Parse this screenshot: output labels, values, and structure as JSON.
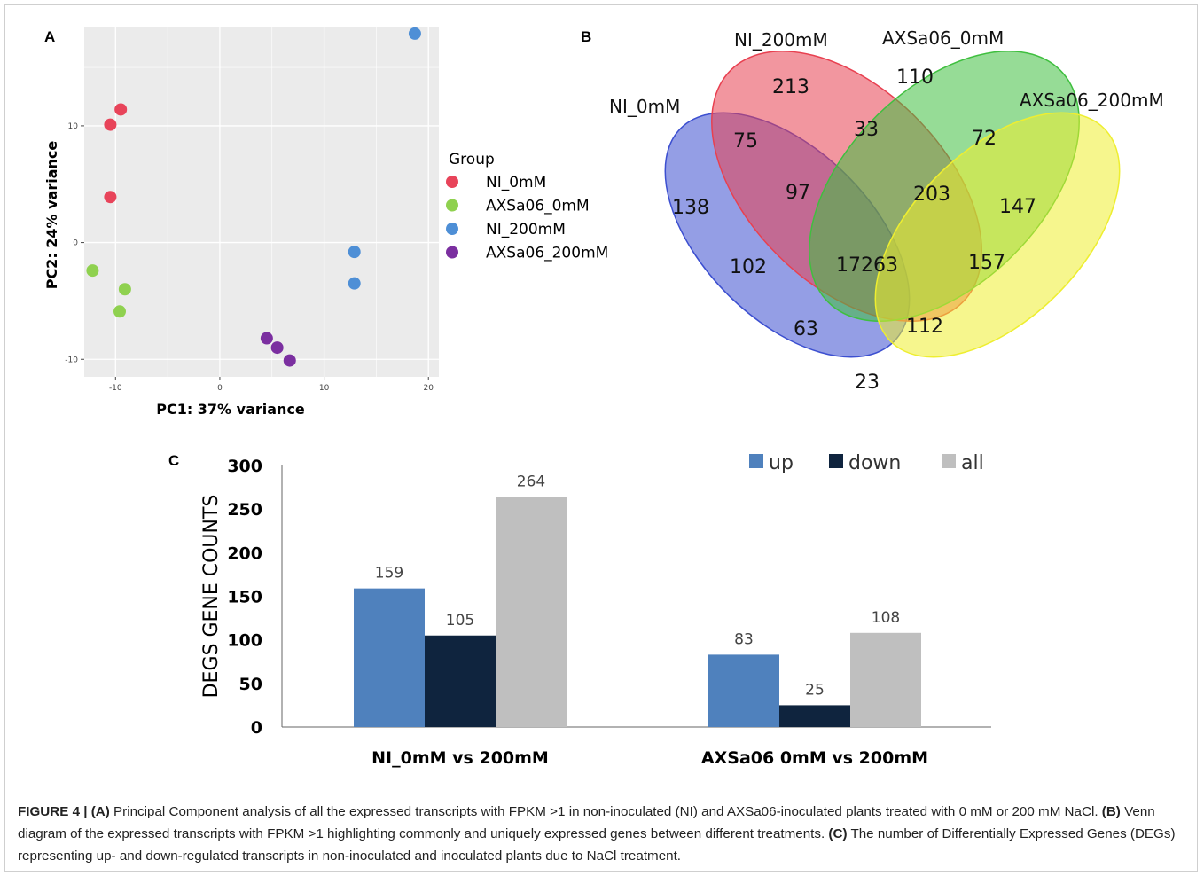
{
  "panels": {
    "a": "A",
    "b": "B",
    "c": "C"
  },
  "chart_data": [
    {
      "type": "scatter",
      "panel": "A",
      "xlabel": "PC1: 37% variance",
      "ylabel": "PC2: 24% variance",
      "xlim": [
        -13,
        21
      ],
      "ylim": [
        -11.5,
        18.5
      ],
      "xticks": [
        -10,
        0,
        10,
        20
      ],
      "yticks": [
        -10,
        0,
        10
      ],
      "legend_title": "Group",
      "legend_position": "right",
      "grid": true,
      "series": [
        {
          "name": "NI_0mM",
          "color": "#e8445a",
          "points": [
            [
              -9.5,
              11.4
            ],
            [
              -10.5,
              10.1
            ],
            [
              -10.5,
              3.9
            ]
          ]
        },
        {
          "name": "AXSa06_0mM",
          "color": "#8fd14f",
          "points": [
            [
              -12.2,
              -2.4
            ],
            [
              -9.1,
              -4.0
            ],
            [
              -9.6,
              -5.9
            ]
          ]
        },
        {
          "name": "NI_200mM",
          "color": "#4e8fd6",
          "points": [
            [
              18.7,
              17.9
            ],
            [
              12.9,
              -0.8
            ],
            [
              12.9,
              -3.5
            ]
          ]
        },
        {
          "name": "AXSa06_200mM",
          "color": "#7b2fa0",
          "points": [
            [
              4.5,
              -8.2
            ],
            [
              5.5,
              -9.0
            ],
            [
              6.7,
              -10.1
            ]
          ]
        }
      ]
    },
    {
      "type": "venn",
      "panel": "B",
      "sets": [
        {
          "name": "NI_0mM",
          "color": "#3c4fd0"
        },
        {
          "name": "NI_200mM",
          "color": "#e84050"
        },
        {
          "name": "AXSa06_0mM",
          "color": "#3fbf3f"
        },
        {
          "name": "AXSa06_200mM",
          "color": "#eeee30"
        }
      ],
      "regions": [
        {
          "sets": [
            "NI_200mM"
          ],
          "value": 213
        },
        {
          "sets": [
            "AXSa06_0mM"
          ],
          "value": 110
        },
        {
          "sets": [
            "NI_0mM"
          ],
          "value": 138
        },
        {
          "sets": [
            "AXSa06_200mM"
          ],
          "value": 147
        },
        {
          "sets": [
            "NI_0mM",
            "NI_200mM"
          ],
          "value": 75
        },
        {
          "sets": [
            "NI_200mM",
            "AXSa06_0mM"
          ],
          "value": 33
        },
        {
          "sets": [
            "AXSa06_0mM",
            "AXSa06_200mM"
          ],
          "value": 72
        },
        {
          "sets": [
            "NI_0mM",
            "NI_200mM",
            "AXSa06_0mM"
          ],
          "value": 97
        },
        {
          "sets": [
            "NI_200mM",
            "AXSa06_0mM",
            "AXSa06_200mM"
          ],
          "value": 203
        },
        {
          "sets": [
            "NI_0mM",
            "AXSa06_0mM"
          ],
          "value": 102
        },
        {
          "sets": [
            "NI_0mM",
            "NI_200mM",
            "AXSa06_0mM",
            "AXSa06_200mM"
          ],
          "value": 17263
        },
        {
          "sets": [
            "NI_200mM",
            "AXSa06_200mM"
          ],
          "value": 157
        },
        {
          "sets": [
            "NI_0mM",
            "AXSa06_0mM",
            "AXSa06_200mM"
          ],
          "value": 63
        },
        {
          "sets": [
            "NI_0mM",
            "NI_200mM",
            "AXSa06_200mM"
          ],
          "value": 112
        },
        {
          "sets": [
            "NI_0mM",
            "AXSa06_200mM"
          ],
          "value": 23
        }
      ]
    },
    {
      "type": "bar",
      "panel": "C",
      "ylabel": "DEGS GENE COUNTS",
      "ylim": [
        0,
        300
      ],
      "yticks": [
        0,
        50,
        100,
        150,
        200,
        250,
        300
      ],
      "categories": [
        "NI_0mM vs 200mM",
        "AXSa06 0mM vs 200mM"
      ],
      "legend_position": "top-right",
      "series": [
        {
          "name": "up",
          "color": "#4f81bd",
          "values": [
            159,
            83
          ]
        },
        {
          "name": "down",
          "color": "#0f243e",
          "values": [
            105,
            25
          ]
        },
        {
          "name": "all",
          "color": "#bfbfbf",
          "values": [
            264,
            108
          ]
        }
      ]
    }
  ],
  "caption": {
    "figure_label": "FIGURE 4 | ",
    "a_tag": "(A)",
    "a_text": " Principal Component analysis of all the expressed transcripts with FPKM >1 in non-inoculated (NI) and AXSa06-inoculated plants treated with 0 mM or 200 mM NaCl. ",
    "b_tag": "(B)",
    "b_text": " Venn diagram of the expressed transcripts with FPKM >1 highlighting commonly and uniquely expressed genes between different treatments. ",
    "c_tag": "(C)",
    "c_text": " The number of Differentially Expressed Genes (DEGs) representing up- and down-regulated transcripts in non-inoculated and inoculated plants due to NaCl treatment."
  }
}
